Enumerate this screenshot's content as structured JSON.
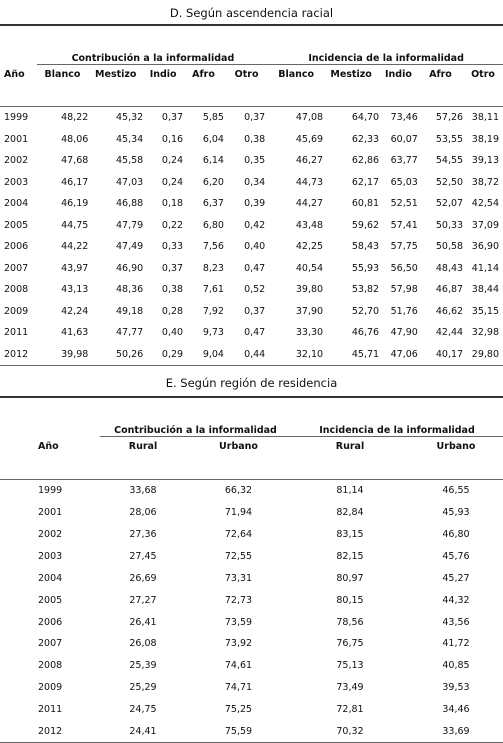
{
  "sectionD": {
    "title": "D. Según ascendencia racial",
    "group1": "Contribución a la informalidad",
    "group2": "Incidencia de la informalidad",
    "headers": [
      "Año",
      "Blanco",
      "Mestizo",
      "Indio",
      "Afro",
      "Otro",
      "Blanco",
      "Mestizo",
      "Indio",
      "Afro",
      "Otro"
    ],
    "rows": [
      [
        "1999",
        "48,22",
        "45,32",
        "0,37",
        "5,85",
        "0,37",
        "47,08",
        "64,70",
        "73,46",
        "57,26",
        "38,11"
      ],
      [
        "2001",
        "48,06",
        "45,34",
        "0,16",
        "6,04",
        "0,38",
        "45,69",
        "62,33",
        "60,07",
        "53,55",
        "38,19"
      ],
      [
        "2002",
        "47,68",
        "45,58",
        "0,24",
        "6,14",
        "0,35",
        "46,27",
        "62,86",
        "63,77",
        "54,55",
        "39,13"
      ],
      [
        "2003",
        "46,17",
        "47,03",
        "0,24",
        "6,20",
        "0,34",
        "44,73",
        "62,17",
        "65,03",
        "52,50",
        "38,72"
      ],
      [
        "2004",
        "46,19",
        "46,88",
        "0,18",
        "6,37",
        "0,39",
        "44,27",
        "60,81",
        "52,51",
        "52,07",
        "42,54"
      ],
      [
        "2005",
        "44,75",
        "47,79",
        "0,22",
        "6,80",
        "0,42",
        "43,48",
        "59,62",
        "57,41",
        "50,33",
        "37,09"
      ],
      [
        "2006",
        "44,22",
        "47,49",
        "0,33",
        "7,56",
        "0,40",
        "42,25",
        "58,43",
        "57,75",
        "50,58",
        "36,90"
      ],
      [
        "2007",
        "43,97",
        "46,90",
        "0,37",
        "8,23",
        "0,47",
        "40,54",
        "55,93",
        "56,50",
        "48,43",
        "41,14"
      ],
      [
        "2008",
        "43,13",
        "48,36",
        "0,38",
        "7,61",
        "0,52",
        "39,80",
        "53,82",
        "57,98",
        "46,87",
        "38,44"
      ],
      [
        "2009",
        "42,24",
        "49,18",
        "0,28",
        "7,92",
        "0,37",
        "37,90",
        "52,70",
        "51,76",
        "46,62",
        "35,15"
      ],
      [
        "2011",
        "41,63",
        "47,77",
        "0,40",
        "9,73",
        "0,47",
        "33,30",
        "46,76",
        "47,90",
        "42,44",
        "32,98"
      ],
      [
        "2012",
        "39,98",
        "50,26",
        "0,29",
        "9,04",
        "0,44",
        "32,10",
        "45,71",
        "47,06",
        "40,17",
        "29,80"
      ]
    ]
  },
  "sectionE": {
    "title": "E. Según región de residencia",
    "group1": "Contribución a la informalidad",
    "group2": "Incidencia de la informalidad",
    "headers": [
      "Año",
      "Rural",
      "Urbano",
      "Rural",
      "Urbano"
    ],
    "rows": [
      [
        "1999",
        "33,68",
        "66,32",
        "81,14",
        "46,55"
      ],
      [
        "2001",
        "28,06",
        "71,94",
        "82,84",
        "45,93"
      ],
      [
        "2002",
        "27,36",
        "72,64",
        "83,15",
        "46,80"
      ],
      [
        "2003",
        "27,45",
        "72,55",
        "82,15",
        "45,76"
      ],
      [
        "2004",
        "26,69",
        "73,31",
        "80,97",
        "45,27"
      ],
      [
        "2005",
        "27,27",
        "72,73",
        "80,15",
        "44,32"
      ],
      [
        "2006",
        "26,41",
        "73,59",
        "78,56",
        "43,56"
      ],
      [
        "2007",
        "26,08",
        "73,92",
        "76,75",
        "41,72"
      ],
      [
        "2008",
        "25,39",
        "74,61",
        "75,13",
        "40,85"
      ],
      [
        "2009",
        "25,29",
        "74,71",
        "73,49",
        "39,53"
      ],
      [
        "2011",
        "24,75",
        "75,25",
        "72,81",
        "34,46"
      ],
      [
        "2012",
        "24,41",
        "75,59",
        "70,32",
        "33,69"
      ]
    ]
  }
}
